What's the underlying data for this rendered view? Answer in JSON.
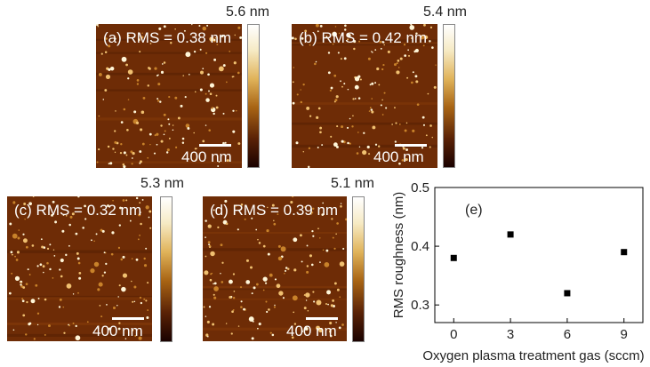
{
  "panels": [
    {
      "label": "(a) RMS = 0.38 nm",
      "cbar_max": "5.6 nm",
      "scale": "400 nm",
      "seed": 11
    },
    {
      "label": "(b) RMS = 0.42 nm",
      "cbar_max": "5.4 nm",
      "scale": "400 nm",
      "seed": 23
    },
    {
      "label": "(c) RMS = 0.32 nm",
      "cbar_max": "5.3 nm",
      "scale": "400 nm",
      "seed": 37
    },
    {
      "label": "(d) RMS = 0.39 nm",
      "cbar_max": "5.1 nm",
      "scale": "400 nm",
      "seed": 51
    }
  ],
  "colors": {
    "afm_base": "#6e2c06",
    "marker": "#000000"
  },
  "chart_data": {
    "type": "scatter",
    "annotation": "(e)",
    "xlabel": "Oxygen plasma treatment gas (sccm)",
    "ylabel": "RMS roughness (nm)",
    "x": [
      0,
      3,
      6,
      9
    ],
    "y": [
      0.38,
      0.42,
      0.32,
      0.39
    ],
    "xticks": [
      "0",
      "3",
      "6",
      "9"
    ],
    "yticks": [
      "0.3",
      "0.4",
      "0.5"
    ],
    "xlim": [
      -1,
      10
    ],
    "ylim": [
      0.27,
      0.5
    ],
    "grid": false
  }
}
